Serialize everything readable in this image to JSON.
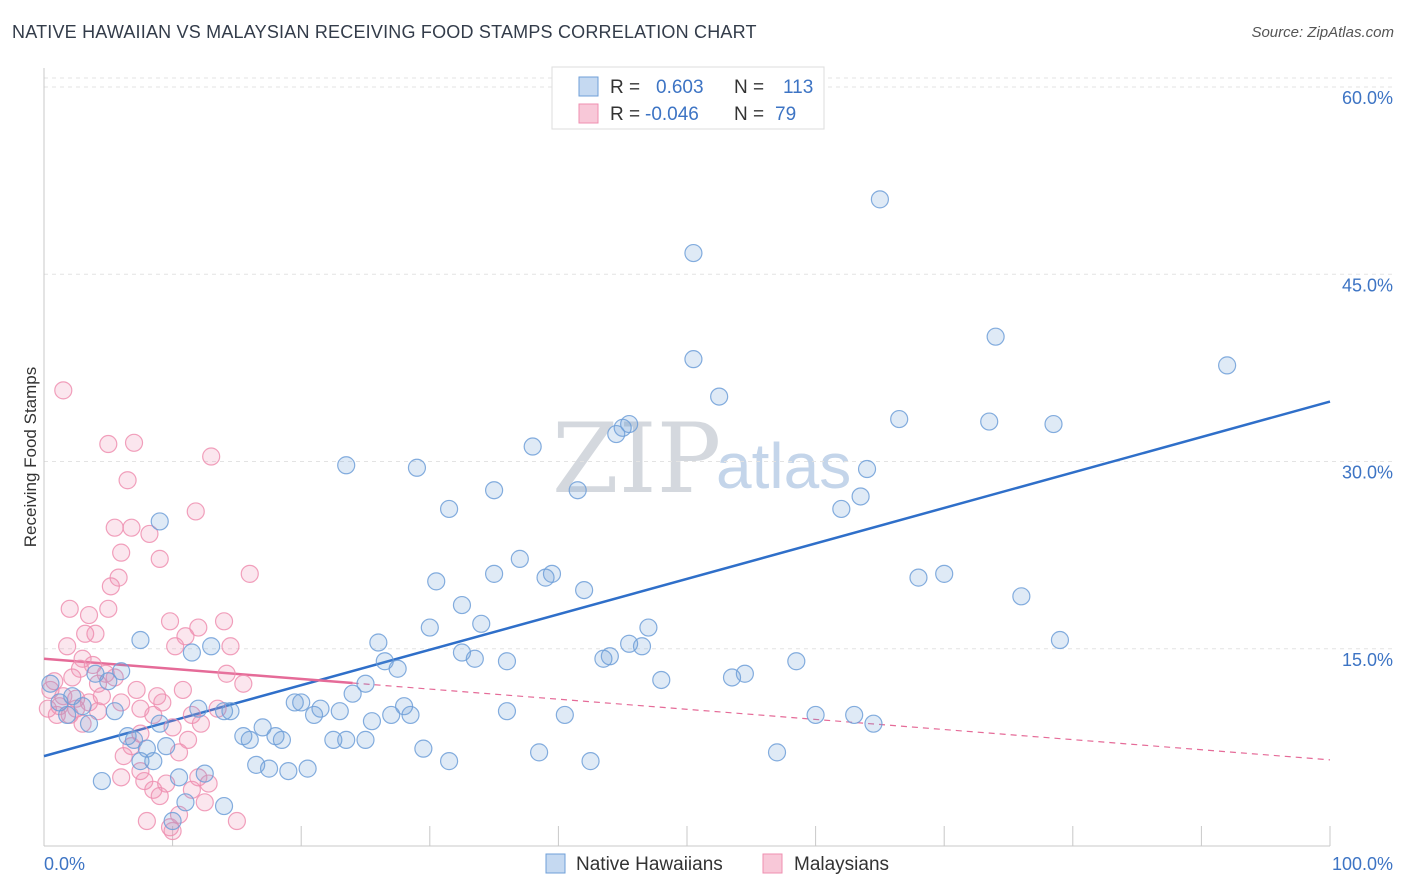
{
  "title": "NATIVE HAWAIIAN VS MALAYSIAN RECEIVING FOOD STAMPS CORRELATION CHART",
  "source": "Source: ZipAtlas.com",
  "watermark": {
    "zip": "ZIP",
    "atlas": "atlas"
  },
  "colors": {
    "blue": "#6f9fd8",
    "pink": "#ef8fb0",
    "blue_line": "#2f6fc9",
    "pink_line": "#e56b98",
    "tick": "#3d74c4"
  },
  "legend_top": [
    {
      "r_label": "R =",
      "r_value": "0.603",
      "n_label": "N =",
      "n_value": "113",
      "color": "blue"
    },
    {
      "r_label": "R =",
      "r_value": "-0.046",
      "n_label": "N =",
      "n_value": "79",
      "color": "pink"
    }
  ],
  "legend_bottom": [
    {
      "label": "Native Hawaiians",
      "color": "blue"
    },
    {
      "label": "Malaysians",
      "color": "pink"
    }
  ],
  "chart_data": {
    "type": "scatter",
    "title": "NATIVE HAWAIIAN VS MALAYSIAN RECEIVING FOOD STAMPS CORRELATION CHART",
    "xlabel": "",
    "ylabel": "Receiving Food Stamps",
    "xlim": [
      0,
      100
    ],
    "ylim": [
      0,
      60
    ],
    "x_tick_labels": [
      "0.0%",
      "100.0%"
    ],
    "y_ticks": [
      15,
      30,
      45,
      60
    ],
    "y_tick_labels": [
      "15.0%",
      "30.0%",
      "45.0%",
      "60.0%"
    ],
    "series": [
      {
        "name": "Native Hawaiians",
        "color": "blue",
        "trend": {
          "x": [
            0,
            100
          ],
          "y": [
            7.2,
            35.6
          ],
          "solid_to": 100
        },
        "points": [
          [
            0.5,
            13.0
          ],
          [
            1.2,
            11.5
          ],
          [
            1.8,
            10.5
          ],
          [
            2.2,
            12.0
          ],
          [
            3.0,
            11.2
          ],
          [
            3.5,
            9.8
          ],
          [
            4.0,
            13.8
          ],
          [
            4.5,
            5.2
          ],
          [
            5.0,
            13.2
          ],
          [
            5.5,
            10.8
          ],
          [
            6.0,
            14.0
          ],
          [
            6.5,
            8.8
          ],
          [
            7.0,
            8.5
          ],
          [
            7.5,
            6.8
          ],
          [
            7.5,
            16.5
          ],
          [
            8.0,
            7.8
          ],
          [
            8.5,
            6.8
          ],
          [
            9.0,
            26.0
          ],
          [
            9.0,
            9.8
          ],
          [
            9.5,
            8.0
          ],
          [
            10.0,
            2.0
          ],
          [
            10.5,
            5.5
          ],
          [
            11.0,
            3.5
          ],
          [
            11.5,
            15.5
          ],
          [
            12.0,
            11.0
          ],
          [
            12.5,
            5.8
          ],
          [
            13.0,
            16.0
          ],
          [
            14.0,
            10.8
          ],
          [
            14.0,
            3.2
          ],
          [
            14.5,
            10.8
          ],
          [
            15.5,
            8.8
          ],
          [
            16.0,
            8.5
          ],
          [
            16.5,
            6.5
          ],
          [
            17.0,
            9.5
          ],
          [
            17.5,
            6.2
          ],
          [
            18.0,
            8.8
          ],
          [
            18.5,
            8.5
          ],
          [
            19.0,
            6.0
          ],
          [
            19.5,
            11.5
          ],
          [
            20.0,
            11.5
          ],
          [
            20.5,
            6.2
          ],
          [
            21.0,
            10.5
          ],
          [
            21.5,
            11.0
          ],
          [
            22.5,
            8.5
          ],
          [
            23.0,
            10.8
          ],
          [
            23.5,
            8.5
          ],
          [
            23.5,
            30.5
          ],
          [
            24.0,
            12.2
          ],
          [
            25.0,
            13.0
          ],
          [
            25.0,
            8.5
          ],
          [
            25.5,
            10.0
          ],
          [
            26.0,
            16.3
          ],
          [
            26.5,
            14.8
          ],
          [
            27.0,
            10.5
          ],
          [
            27.5,
            14.2
          ],
          [
            28.0,
            11.2
          ],
          [
            28.5,
            10.5
          ],
          [
            29.0,
            30.3
          ],
          [
            29.5,
            7.8
          ],
          [
            30.0,
            17.5
          ],
          [
            30.5,
            21.2
          ],
          [
            31.5,
            6.8
          ],
          [
            31.5,
            27.0
          ],
          [
            32.5,
            19.3
          ],
          [
            32.5,
            15.5
          ],
          [
            33.5,
            15.0
          ],
          [
            34.0,
            17.8
          ],
          [
            35.0,
            21.8
          ],
          [
            35.0,
            28.5
          ],
          [
            36.0,
            14.8
          ],
          [
            36.0,
            10.8
          ],
          [
            37.0,
            23.0
          ],
          [
            38.0,
            32.0
          ],
          [
            38.5,
            7.5
          ],
          [
            39.0,
            21.5
          ],
          [
            39.5,
            21.8
          ],
          [
            40.5,
            10.5
          ],
          [
            41.5,
            28.5
          ],
          [
            42.0,
            20.5
          ],
          [
            42.5,
            6.8
          ],
          [
            43.5,
            15.0
          ],
          [
            44.0,
            15.2
          ],
          [
            44.5,
            33.0
          ],
          [
            45.0,
            33.5
          ],
          [
            45.5,
            33.8
          ],
          [
            45.5,
            16.2
          ],
          [
            46.5,
            16.0
          ],
          [
            47.0,
            17.5
          ],
          [
            48.0,
            13.3
          ],
          [
            50.5,
            39.0
          ],
          [
            50.5,
            47.5
          ],
          [
            52.5,
            36.0
          ],
          [
            53.5,
            13.5
          ],
          [
            54.5,
            13.8
          ],
          [
            57.0,
            7.5
          ],
          [
            58.5,
            14.8
          ],
          [
            60.0,
            10.5
          ],
          [
            62.0,
            27.0
          ],
          [
            63.0,
            10.5
          ],
          [
            63.5,
            28.0
          ],
          [
            64.0,
            30.2
          ],
          [
            64.5,
            9.8
          ],
          [
            65.0,
            51.8
          ],
          [
            66.5,
            34.2
          ],
          [
            68.0,
            21.5
          ],
          [
            70.0,
            21.8
          ],
          [
            73.5,
            34.0
          ],
          [
            74.0,
            40.8
          ],
          [
            76.0,
            20.0
          ],
          [
            78.5,
            33.8
          ],
          [
            79.0,
            16.5
          ],
          [
            92.0,
            38.5
          ]
        ]
      },
      {
        "name": "Malaysians",
        "color": "pink",
        "trend": {
          "x": [
            0,
            100
          ],
          "y": [
            15.0,
            6.9
          ],
          "solid_to": 24
        },
        "points": [
          [
            0.3,
            11.0
          ],
          [
            0.5,
            12.5
          ],
          [
            0.8,
            13.2
          ],
          [
            1.0,
            10.5
          ],
          [
            1.2,
            11.2
          ],
          [
            1.5,
            12.0
          ],
          [
            1.8,
            16.0
          ],
          [
            2.0,
            19.0
          ],
          [
            2.2,
            13.5
          ],
          [
            2.5,
            11.0
          ],
          [
            2.8,
            14.2
          ],
          [
            3.0,
            15.0
          ],
          [
            3.2,
            17.0
          ],
          [
            3.5,
            18.5
          ],
          [
            3.8,
            14.5
          ],
          [
            4.0,
            17.0
          ],
          [
            4.2,
            13.0
          ],
          [
            4.5,
            12.0
          ],
          [
            4.8,
            13.8
          ],
          [
            5.0,
            19.0
          ],
          [
            5.0,
            32.2
          ],
          [
            5.2,
            20.8
          ],
          [
            5.5,
            25.5
          ],
          [
            5.8,
            21.5
          ],
          [
            6.0,
            11.5
          ],
          [
            6.0,
            5.5
          ],
          [
            6.2,
            7.2
          ],
          [
            6.5,
            29.3
          ],
          [
            6.8,
            25.5
          ],
          [
            7.0,
            32.3
          ],
          [
            7.2,
            12.5
          ],
          [
            7.5,
            11.0
          ],
          [
            7.5,
            9.0
          ],
          [
            7.8,
            5.2
          ],
          [
            8.0,
            2.0
          ],
          [
            8.2,
            25.0
          ],
          [
            8.5,
            10.5
          ],
          [
            8.8,
            12.0
          ],
          [
            9.0,
            23.0
          ],
          [
            9.0,
            4.0
          ],
          [
            9.2,
            11.5
          ],
          [
            9.5,
            5.0
          ],
          [
            9.8,
            1.5
          ],
          [
            10.0,
            1.2
          ],
          [
            10.0,
            9.5
          ],
          [
            10.2,
            16.0
          ],
          [
            10.5,
            7.5
          ],
          [
            10.8,
            12.5
          ],
          [
            11.0,
            16.8
          ],
          [
            11.2,
            8.5
          ],
          [
            11.5,
            10.5
          ],
          [
            11.8,
            26.8
          ],
          [
            12.0,
            17.5
          ],
          [
            12.2,
            9.8
          ],
          [
            12.5,
            3.5
          ],
          [
            12.8,
            5.0
          ],
          [
            13.0,
            31.2
          ],
          [
            13.5,
            11.0
          ],
          [
            14.0,
            18.0
          ],
          [
            14.2,
            13.8
          ],
          [
            14.5,
            16.0
          ],
          [
            15.0,
            2.0
          ],
          [
            15.5,
            13.0
          ],
          [
            16.0,
            21.8
          ],
          [
            1.5,
            36.5
          ],
          [
            2.5,
            11.8
          ],
          [
            3.5,
            11.5
          ],
          [
            4.2,
            10.8
          ],
          [
            5.5,
            13.5
          ],
          [
            6.8,
            8.0
          ],
          [
            7.5,
            6.0
          ],
          [
            8.5,
            4.5
          ],
          [
            9.8,
            18.0
          ],
          [
            10.5,
            2.5
          ],
          [
            11.5,
            4.5
          ],
          [
            12.0,
            5.5
          ],
          [
            2.0,
            10.5
          ],
          [
            3.0,
            9.8
          ],
          [
            6.0,
            23.5
          ]
        ]
      }
    ]
  }
}
